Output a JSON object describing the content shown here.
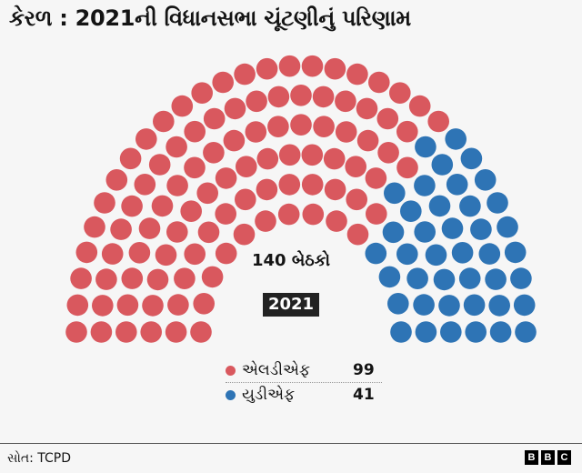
{
  "title": "કેરળ : 2021ની વિધાનસભા ચૂંટણીનું પરિણામ",
  "center": {
    "seats_label": "140 બેઠકો",
    "year": "2021"
  },
  "legend": [
    {
      "label": "એલડીએફ",
      "value": "99",
      "color": "#d9585e"
    },
    {
      "label": "યુડીએફ",
      "value": "41",
      "color": "#2e74b5"
    }
  ],
  "footer": {
    "source": "સોત: TCPD",
    "logo": [
      "B",
      "B",
      "C"
    ]
  },
  "chart_data": {
    "type": "parliament-hemicycle",
    "title": "કેરળ : 2021ની વિધાનસભા ચૂંટણીનું પરિણામ",
    "total_seats": 140,
    "year": "2021",
    "rows": 6,
    "series": [
      {
        "name": "એલડીએફ",
        "seats": 99,
        "color": "#d9585e"
      },
      {
        "name": "યુડીએફ",
        "seats": 41,
        "color": "#2e74b5"
      }
    ],
    "source": "TCPD"
  }
}
